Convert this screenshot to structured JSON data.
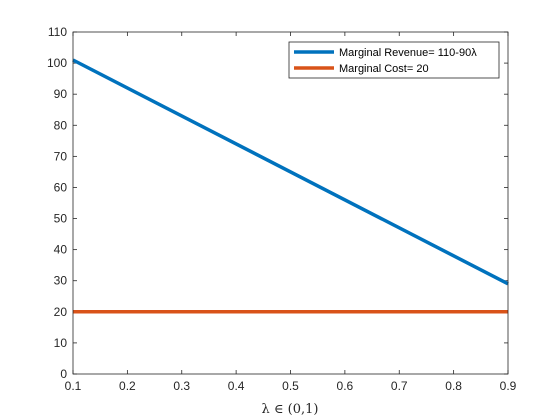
{
  "chart_data": {
    "type": "line",
    "title": "",
    "xlabel": "λ ∈ (0,1)",
    "ylabel": "",
    "xlim": [
      0.1,
      0.9
    ],
    "ylim": [
      0,
      110
    ],
    "xticks": [
      0.1,
      0.2,
      0.3,
      0.4,
      0.5,
      0.6,
      0.7,
      0.8,
      0.9
    ],
    "xtick_labels": [
      "0.1",
      "0.2",
      "0.3",
      "0.4",
      "0.5",
      "0.6",
      "0.7",
      "0.8",
      "0.9"
    ],
    "yticks": [
      0,
      10,
      20,
      30,
      40,
      50,
      60,
      70,
      80,
      90,
      100,
      110
    ],
    "ytick_labels": [
      "0",
      "10",
      "20",
      "30",
      "40",
      "50",
      "60",
      "70",
      "80",
      "90",
      "100",
      "110"
    ],
    "grid": false,
    "legend_position": "top-right",
    "series": [
      {
        "name": "Marginal Revenue= 110-90λ",
        "x": [
          0.1,
          0.9
        ],
        "y": [
          101,
          29
        ],
        "color": "#0072BD"
      },
      {
        "name": "Marginal Cost= 20",
        "x": [
          0.1,
          0.9
        ],
        "y": [
          20,
          20
        ],
        "color": "#D95319"
      }
    ]
  }
}
